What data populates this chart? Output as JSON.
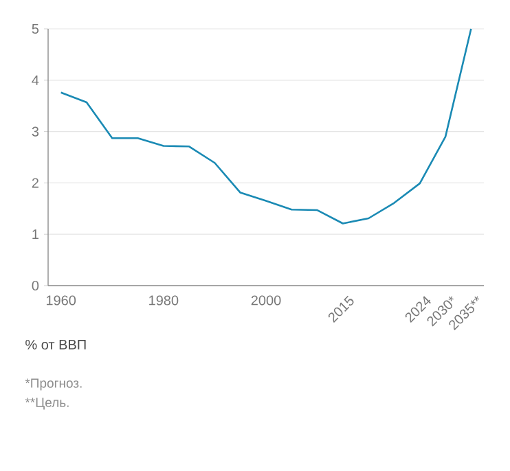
{
  "chart_data": {
    "type": "line",
    "categories": [
      "1960",
      null,
      null,
      null,
      "1980",
      null,
      null,
      null,
      "2000",
      null,
      null,
      "2015",
      null,
      null,
      "2024",
      "2030*",
      "2035**"
    ],
    "values": [
      3.76,
      3.57,
      2.87,
      2.87,
      2.72,
      2.71,
      2.39,
      1.81,
      1.65,
      1.48,
      1.47,
      1.21,
      1.31,
      1.61,
      1.99,
      2.9,
      5.0
    ],
    "color": "#1a8ab4",
    "ylabel": "% от ВВП",
    "ylim": [
      0,
      5
    ],
    "yticks": [
      0,
      1,
      2,
      3,
      4,
      5
    ],
    "grid": true,
    "marker": "none",
    "line_style": "solid",
    "annotations": [
      "*Прогноз.",
      "**Цель."
    ]
  }
}
